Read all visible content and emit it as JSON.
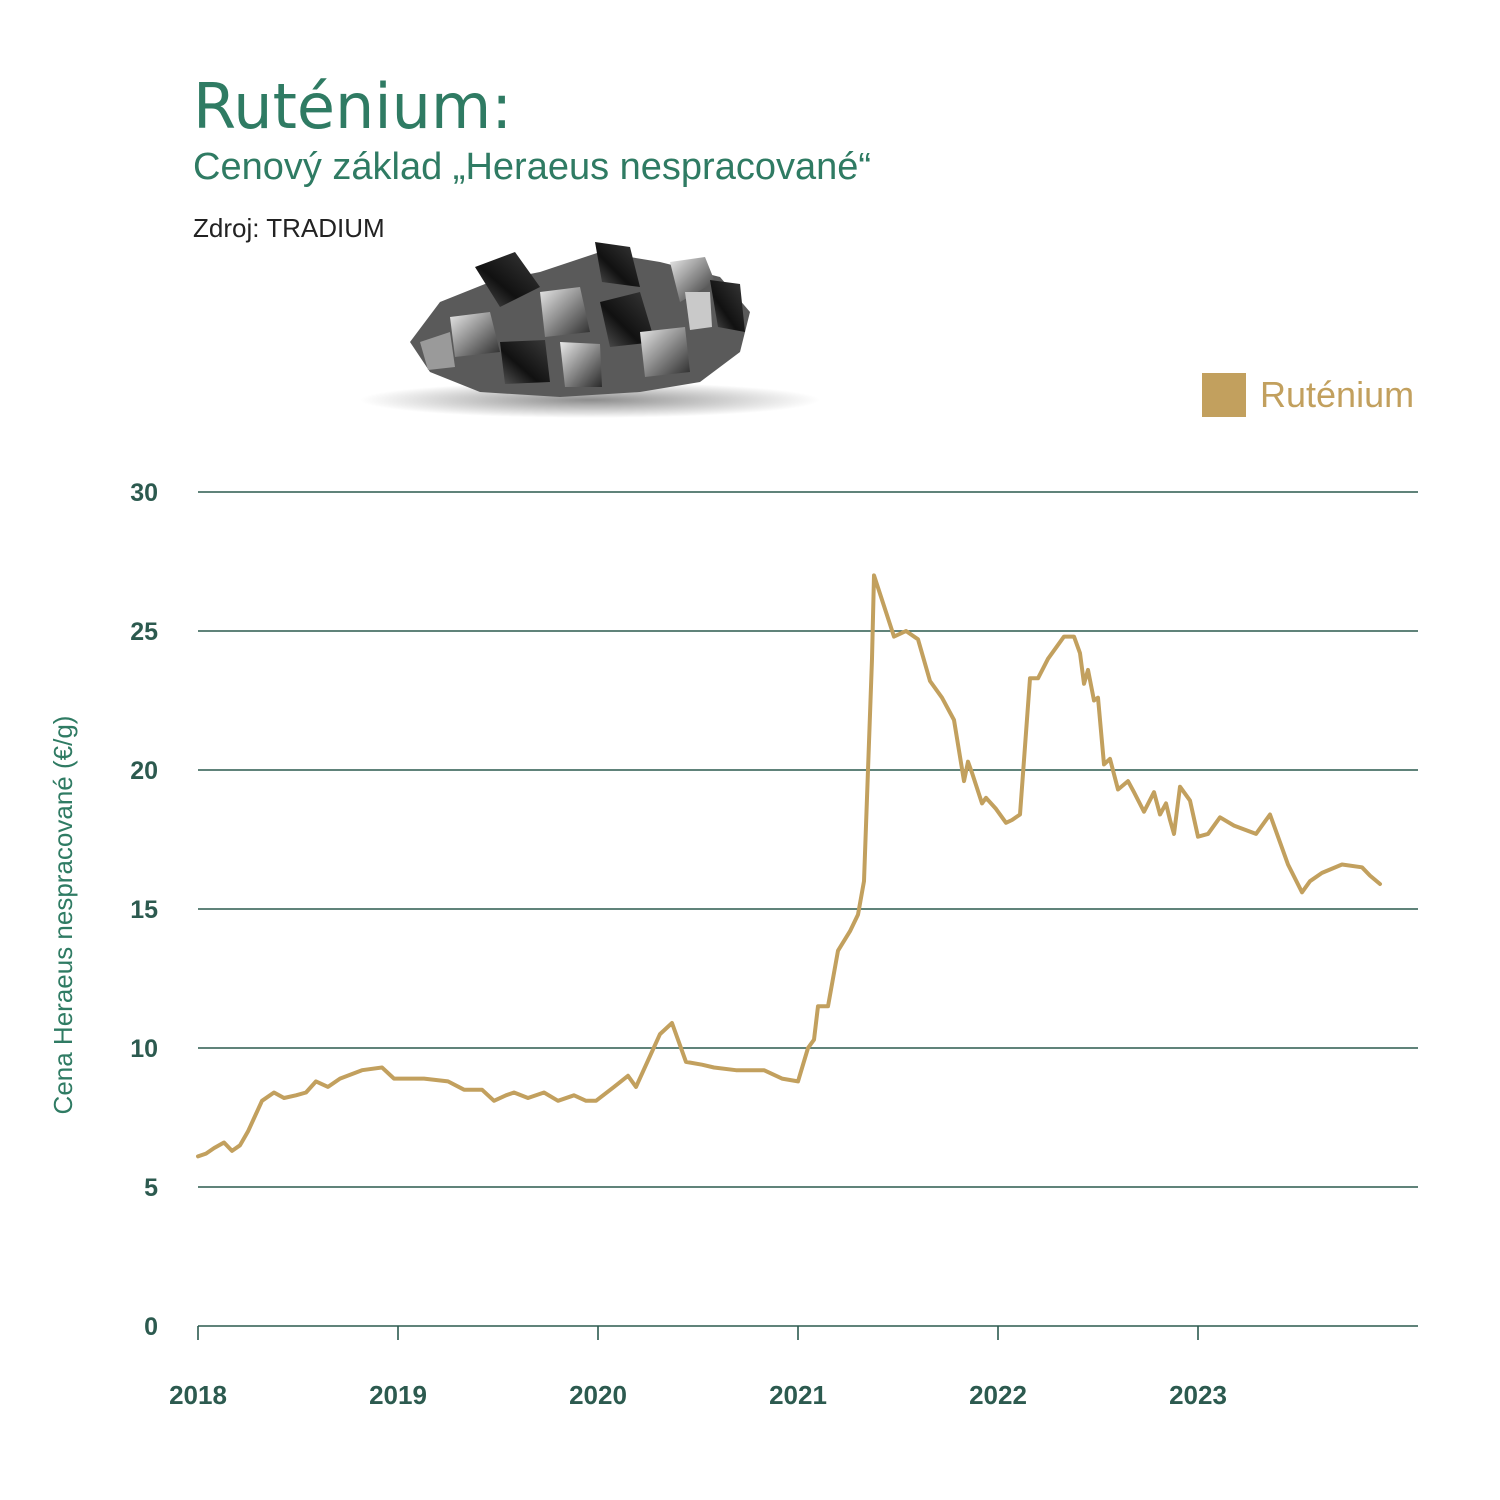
{
  "header": {
    "title": "Ruténium:",
    "subtitle": "Cenový základ „Heraeus nespracované“",
    "source": "Zdroj: TRADIUM"
  },
  "colors": {
    "series": "#c2a05e",
    "grid": "#2c5a4f",
    "title": "#2f7b63",
    "axis_text": "#2c5a4f"
  },
  "icons": {
    "mineral_image": "ruthenium-crystal"
  },
  "chart_data": {
    "type": "line",
    "title": "Ruténium:",
    "subtitle": "Cenový základ „Heraeus nespracované“",
    "xlabel": "",
    "ylabel": "Cena Heraeus nespracované (€/g)",
    "ylim": [
      0,
      30
    ],
    "xlim": [
      2018.0,
      2024.1
    ],
    "yticks": [
      "0",
      "5",
      "10",
      "15",
      "20",
      "25",
      "30"
    ],
    "xticks": [
      "2018",
      "2019",
      "2020",
      "2021",
      "2022",
      "2023"
    ],
    "grid": true,
    "legend_position": "top-right",
    "series": [
      {
        "name": "Ruténium",
        "x": [
          2018.0,
          2018.04,
          2018.08,
          2018.13,
          2018.17,
          2018.21,
          2018.25,
          2018.32,
          2018.38,
          2018.43,
          2018.49,
          2018.54,
          2018.59,
          2018.65,
          2018.71,
          2018.82,
          2018.92,
          2018.98,
          2019.04,
          2019.13,
          2019.25,
          2019.33,
          2019.42,
          2019.48,
          2019.54,
          2019.58,
          2019.65,
          2019.73,
          2019.8,
          2019.88,
          2019.94,
          2019.99,
          2020.08,
          2020.15,
          2020.19,
          2020.31,
          2020.37,
          2020.44,
          2020.52,
          2020.58,
          2020.69,
          2020.83,
          2020.92,
          2021.0,
          2021.05,
          2021.08,
          2021.1,
          2021.15,
          2021.2,
          2021.26,
          2021.3,
          2021.33,
          2021.35,
          2021.37,
          2021.38,
          2021.48,
          2021.54,
          2021.6,
          2021.66,
          2021.72,
          2021.78,
          2021.83,
          2021.85,
          2021.87,
          2021.92,
          2021.94,
          2021.99,
          2022.04,
          2022.07,
          2022.11,
          2022.16,
          2022.18,
          2022.2,
          2022.25,
          2022.33,
          2022.38,
          2022.41,
          2022.43,
          2022.45,
          2022.48,
          2022.5,
          2022.53,
          2022.56,
          2022.6,
          2022.65,
          2022.68,
          2022.73,
          2022.78,
          2022.81,
          2022.84,
          2022.86,
          2022.88,
          2022.91,
          2022.96,
          2023.0,
          2023.05,
          2023.11,
          2023.18,
          2023.29,
          2023.36,
          2023.42,
          2023.45,
          2023.52,
          2023.56,
          2023.62,
          2023.72,
          2023.82,
          2023.86,
          2023.91
        ],
        "values": [
          6.1,
          6.2,
          6.4,
          6.6,
          6.3,
          6.5,
          7.0,
          8.1,
          8.4,
          8.2,
          8.3,
          8.4,
          8.8,
          8.6,
          8.9,
          9.2,
          9.3,
          8.9,
          8.9,
          8.9,
          8.8,
          8.5,
          8.5,
          8.1,
          8.3,
          8.4,
          8.2,
          8.4,
          8.1,
          8.3,
          8.1,
          8.1,
          8.6,
          9.0,
          8.6,
          10.5,
          10.9,
          9.5,
          9.4,
          9.3,
          9.2,
          9.2,
          8.9,
          8.8,
          10.0,
          10.3,
          11.5,
          11.5,
          13.5,
          14.2,
          14.8,
          16.0,
          20.0,
          24.0,
          27.0,
          24.8,
          25.0,
          24.7,
          23.2,
          22.6,
          21.8,
          19.6,
          20.3,
          19.9,
          18.8,
          19.0,
          18.6,
          18.1,
          18.2,
          18.4,
          23.3,
          23.3,
          23.3,
          24.0,
          24.8,
          24.8,
          24.2,
          23.1,
          23.6,
          22.5,
          22.6,
          20.2,
          20.4,
          19.3,
          19.6,
          19.2,
          18.5,
          19.2,
          18.4,
          18.8,
          18.2,
          17.7,
          19.4,
          18.9,
          17.6,
          17.7,
          18.3,
          18.0,
          17.7,
          18.4,
          17.2,
          16.6,
          15.6,
          16.0,
          16.3,
          16.6,
          16.5,
          16.2,
          15.9
        ]
      }
    ]
  }
}
